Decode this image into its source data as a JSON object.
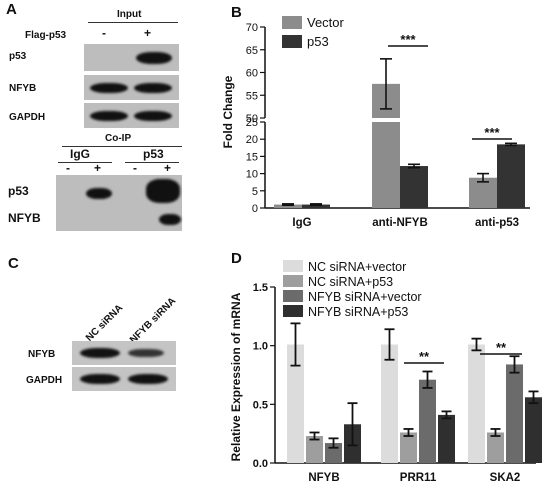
{
  "panelA": {
    "letter": "A",
    "input_title": "Input",
    "flag_label": "Flag-p53",
    "flag_signs": [
      "-",
      "+"
    ],
    "blots_input": [
      "p53",
      "NFYB",
      "GAPDH"
    ],
    "coip_title": "Co-IP",
    "ip_groups": [
      "IgG",
      "p53"
    ],
    "ip_signs": [
      "-",
      "+",
      "-",
      "+"
    ],
    "blots_coip": [
      "p53",
      "NFYB"
    ]
  },
  "panelB": {
    "letter": "B",
    "chart_data": {
      "type": "bar",
      "categories": [
        "IgG",
        "anti-NFYB",
        "anti-p53"
      ],
      "series": [
        {
          "name": "Vector",
          "color": "#8c8c8c",
          "values": [
            1.0,
            57.5,
            8.8
          ],
          "errors": [
            0.2,
            5.5,
            1.2
          ]
        },
        {
          "name": "p53",
          "color": "#333333",
          "values": [
            1.0,
            12.2,
            18.5
          ],
          "errors": [
            0.2,
            0.5,
            0.3
          ]
        }
      ],
      "ylabel": "Fold Change",
      "y_break": {
        "lower": [
          0,
          25
        ],
        "upper": [
          50,
          70
        ]
      },
      "yticks_lower": [
        "0",
        "5",
        "10",
        "15",
        "20",
        "25"
      ],
      "yticks_upper": [
        "50",
        "55",
        "60",
        "65",
        "70"
      ],
      "significance": [
        "***",
        "***"
      ]
    }
  },
  "panelC": {
    "letter": "C",
    "lanes": [
      "NC siRNA",
      "NFYB siRNA"
    ],
    "blots": [
      "NFYB",
      "GAPDH"
    ]
  },
  "panelD": {
    "letter": "D",
    "chart_data": {
      "type": "bar",
      "categories": [
        "NFYB",
        "PRR11",
        "SKA2"
      ],
      "series": [
        {
          "name": "NC siRNA+vector",
          "color": "#dcdcdc",
          "values": [
            1.01,
            1.01,
            1.01
          ],
          "errors": [
            0.18,
            0.13,
            0.05
          ]
        },
        {
          "name": "NC siRNA+p53",
          "color": "#9e9e9e",
          "values": [
            0.23,
            0.26,
            0.26
          ],
          "errors": [
            0.03,
            0.03,
            0.03
          ]
        },
        {
          "name": "NFYB siRNA+vector",
          "color": "#6b6b6b",
          "values": [
            0.17,
            0.71,
            0.84
          ],
          "errors": [
            0.04,
            0.07,
            0.07
          ]
        },
        {
          "name": "NFYB siRNA+p53",
          "color": "#2f2f2f",
          "values": [
            0.33,
            0.41,
            0.56
          ],
          "errors": [
            0.18,
            0.03,
            0.05
          ]
        }
      ],
      "ylabel": "Relative Expression of mRNA",
      "ylim": [
        0,
        1.5
      ],
      "yticks": [
        "0.0",
        "0.5",
        "1.0",
        "1.5"
      ],
      "significance": [
        "**",
        "**"
      ]
    }
  }
}
